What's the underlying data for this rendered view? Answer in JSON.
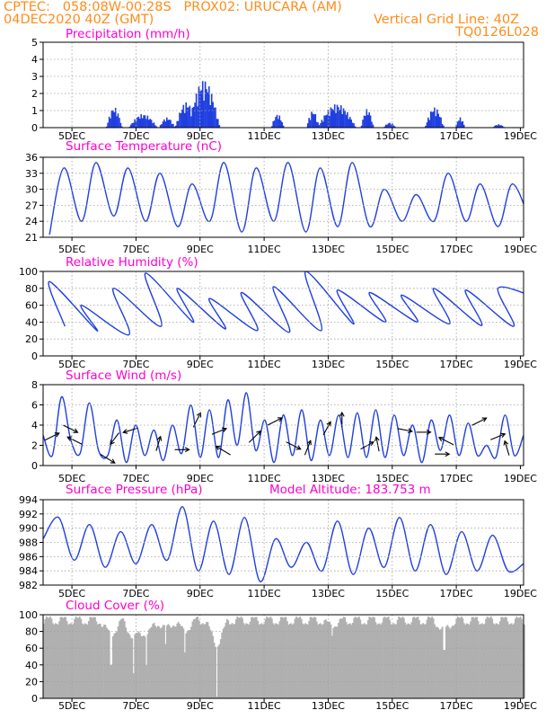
{
  "header": {
    "line1": "CPTEC:   058:08W-00:28S   PROX02: URUCARA (AM)",
    "line2_left": "04DEC2020 40Z (GMT)",
    "line2_right": "Vertical Grid Line: 40Z",
    "line3_right": "TQ0126L028"
  },
  "colors": {
    "series": "#1f3fe0",
    "title": "#ff00cc",
    "header": "#ff8c1a",
    "cloud": "#b0b0b0"
  },
  "chart_data": [
    {
      "id": "precip",
      "type": "bar",
      "title": "Precipitation (mm/h)",
      "ylim": [
        0,
        5
      ],
      "yticks": [
        "0",
        "1",
        "2",
        "3",
        "4",
        "5"
      ],
      "xticks": [
        "5DEC",
        "7DEC",
        "9DEC",
        "11DEC",
        "13DEC",
        "15DEC",
        "17DEC",
        "19DEC"
      ],
      "grid": true,
      "events": [
        {
          "day": 6.3,
          "width": 0.25,
          "peak": 1.2
        },
        {
          "day": 7.2,
          "width": 0.45,
          "peak": 0.8
        },
        {
          "day": 7.95,
          "width": 0.25,
          "peak": 0.6
        },
        {
          "day": 8.55,
          "width": 0.35,
          "peak": 1.5
        },
        {
          "day": 9.1,
          "width": 0.5,
          "peak": 2.8
        },
        {
          "day": 11.4,
          "width": 0.2,
          "peak": 0.8
        },
        {
          "day": 12.5,
          "width": 0.2,
          "peak": 1.0
        },
        {
          "day": 13.25,
          "width": 0.6,
          "peak": 1.4
        },
        {
          "day": 14.2,
          "width": 0.2,
          "peak": 1.1
        },
        {
          "day": 14.9,
          "width": 0.2,
          "peak": 0.3
        },
        {
          "day": 16.3,
          "width": 0.3,
          "peak": 1.2
        },
        {
          "day": 17.1,
          "width": 0.15,
          "peak": 0.6
        },
        {
          "day": 18.3,
          "width": 0.2,
          "peak": 0.2
        }
      ]
    },
    {
      "id": "temp",
      "type": "line",
      "title": "Surface Temperature (nC)",
      "ylim": [
        21,
        36
      ],
      "yticks": [
        "21",
        "24",
        "27",
        "30",
        "33",
        "36"
      ],
      "xticks": [
        "5DEC",
        "7DEC",
        "9DEC",
        "11DEC",
        "13DEC",
        "15DEC",
        "17DEC",
        "19DEC"
      ],
      "grid": true,
      "peaks": [
        34.0,
        35.0,
        34.0,
        33.0,
        31.0,
        35.0,
        34.0,
        35.0,
        34.0,
        35.0,
        30.0,
        29.0,
        33.0,
        31.0,
        31.0,
        32.0,
        34.0
      ],
      "troughs": [
        21.5,
        24.0,
        25.0,
        24.0,
        23.0,
        24.0,
        22.0,
        24.0,
        22.0,
        23.0,
        23.0,
        24.0,
        24.0,
        24.0,
        23.0,
        24.0,
        24.0
      ]
    },
    {
      "id": "rh",
      "type": "line",
      "title": "Relative Humidity (%)",
      "ylim": [
        0,
        100
      ],
      "yticks": [
        "0",
        "20",
        "40",
        "60",
        "80",
        "100"
      ],
      "xticks": [
        "5DEC",
        "7DEC",
        "9DEC",
        "11DEC",
        "13DEC",
        "15DEC",
        "17DEC",
        "19DEC"
      ],
      "grid": true,
      "peaks": [
        88,
        60,
        80,
        98,
        80,
        68,
        75,
        82,
        100,
        78,
        75,
        72,
        80,
        78,
        80,
        72,
        80
      ],
      "troughs": [
        35,
        30,
        25,
        35,
        40,
        32,
        30,
        28,
        30,
        38,
        40,
        40,
        38,
        36,
        35,
        38,
        35
      ]
    },
    {
      "id": "wind",
      "type": "line",
      "title": "Surface Wind (m/s)",
      "ylim": [
        0,
        8
      ],
      "yticks": [
        "0",
        "2",
        "4",
        "6",
        "8"
      ],
      "xticks": [
        "5DEC",
        "7DEC",
        "9DEC",
        "11DEC",
        "13DEC",
        "15DEC",
        "17DEC",
        "19DEC"
      ],
      "grid": true,
      "values": [
        3.0,
        1.0,
        6.8,
        2.5,
        1.2,
        6.2,
        1.5,
        1.0,
        4.5,
        0.3,
        4.0,
        1.0,
        3.5,
        0.5,
        4.0,
        1.2,
        6.0,
        0.8,
        5.5,
        0.8,
        6.5,
        2.0,
        7.2,
        1.5,
        4.5,
        0.3,
        5.0,
        1.0,
        5.5,
        0.5,
        4.5,
        1.0,
        5.0,
        0.8,
        5.2,
        0.8,
        5.5,
        0.8,
        5.0,
        1.0,
        4.0,
        0.3,
        4.5,
        1.5,
        5.0,
        1.0,
        4.2,
        1.0,
        2.0,
        0.8,
        5.0,
        1.0,
        3.0
      ]
    },
    {
      "id": "pres",
      "type": "line",
      "title": "Surface Pressure (hPa)",
      "annotation": "Model Altitude: 183.753  m",
      "ylim": [
        982,
        994
      ],
      "yticks": [
        "982",
        "984",
        "986",
        "988",
        "990",
        "992",
        "994"
      ],
      "xticks": [
        "5DEC",
        "7DEC",
        "9DEC",
        "11DEC",
        "13DEC",
        "15DEC",
        "17DEC",
        "19DEC"
      ],
      "grid": true,
      "values": [
        988.5,
        991.5,
        985.5,
        990.5,
        984.5,
        989.5,
        985.0,
        990.5,
        985.5,
        993.0,
        984.0,
        991.0,
        983.5,
        991.5,
        982.5,
        988.5,
        984.5,
        988.0,
        984.0,
        991.0,
        983.5,
        990.0,
        984.5,
        991.5,
        984.0,
        990.5,
        983.5,
        989.5,
        984.0,
        989.0,
        984.0,
        985.0
      ]
    },
    {
      "id": "cloud",
      "type": "area",
      "title": "Cloud Cover (%)",
      "ylim": [
        0,
        100
      ],
      "yticks": [
        "0",
        "20",
        "40",
        "60",
        "80",
        "100"
      ],
      "xticks": [
        "5DEC",
        "7DEC",
        "9DEC",
        "11DEC",
        "13DEC",
        "15DEC",
        "17DEC",
        "19DEC"
      ],
      "grid": true,
      "typical": 93,
      "dips": [
        {
          "day": 6.2,
          "value": 40
        },
        {
          "day": 6.9,
          "value": 30
        },
        {
          "day": 7.3,
          "value": 40
        },
        {
          "day": 7.9,
          "value": 65
        },
        {
          "day": 8.5,
          "value": 55
        },
        {
          "day": 9.5,
          "value": 2
        },
        {
          "day": 13.1,
          "value": 75
        },
        {
          "day": 16.6,
          "value": 58
        }
      ]
    }
  ]
}
